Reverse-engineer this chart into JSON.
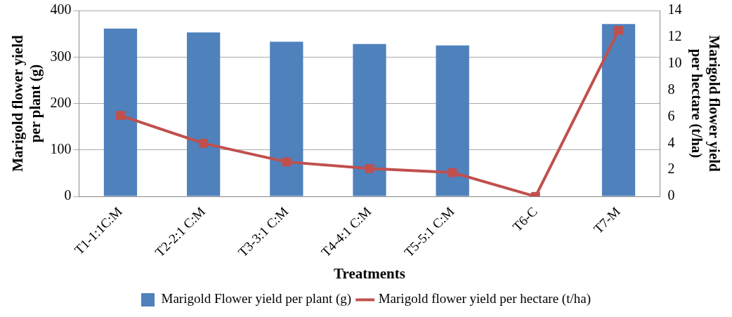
{
  "chart_data": {
    "type": "bar",
    "xlabel": "Treatments",
    "ylabel": "Marigold flower yield per plant (g)",
    "y2label": "Marigold flower yield per hectare (t/ha)",
    "categories": [
      "T1-1:1C:M",
      "T2-2:1 C:M",
      "T3-3:1 C:M",
      "T4-4:1 C:M",
      "T5-5:1 C:M",
      "T6-C",
      "T7-M"
    ],
    "series": [
      {
        "name": "Marigold Flower yield per plant (g)",
        "color": "#4f81bd",
        "values": [
          361,
          353,
          333,
          328,
          325,
          0,
          371
        ]
      },
      {
        "name": "Marigold flower yield per hectare (t/ha)",
        "type": "line",
        "axis": "y2",
        "color": "#c0504d",
        "marker": "square",
        "values": [
          6.1,
          4.0,
          2.6,
          2.1,
          1.8,
          0,
          12.5
        ]
      }
    ],
    "ylim": [
      0,
      400
    ],
    "yticks": [
      0,
      100,
      200,
      300,
      400
    ],
    "y2lim": [
      0,
      14
    ],
    "y2ticks": [
      0,
      2,
      4,
      6,
      8,
      10,
      12,
      14
    ],
    "grid": "y",
    "legend": "bottom"
  }
}
